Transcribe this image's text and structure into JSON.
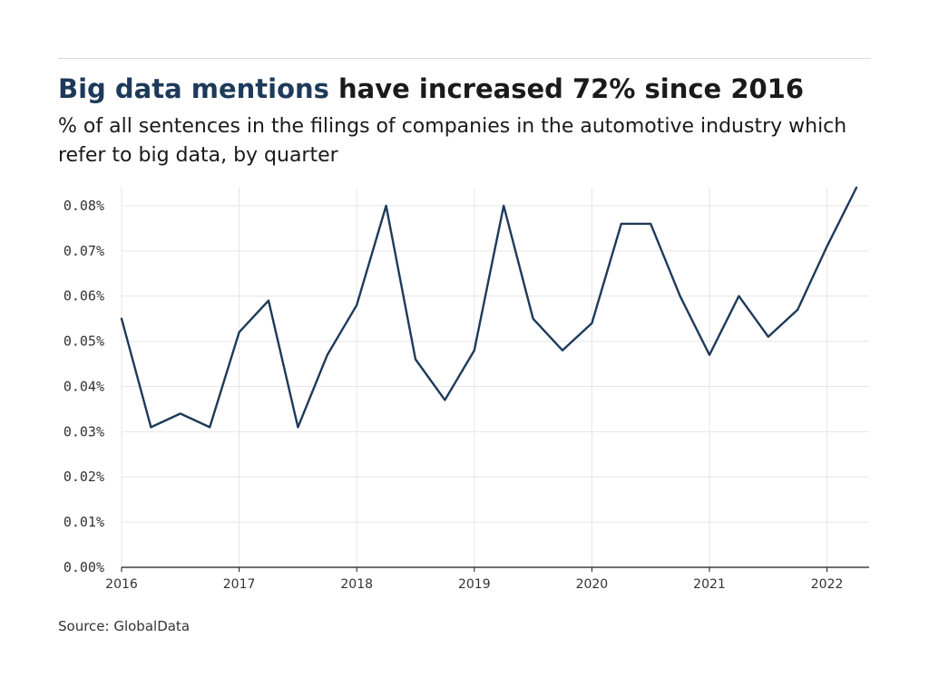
{
  "title": {
    "highlight": "Big data mentions",
    "rest": " have increased 72% since 2016"
  },
  "subtitle": "% of all sentences in the filings of companies in the automotive industry which refer to big data, by quarter",
  "source": "Source: GlobalData",
  "colors": {
    "line": "#1e3a5a",
    "title_highlight": "#1e3a5a",
    "grid": "#e6e6e6",
    "axis": "#1a1a1a"
  },
  "chart_data": {
    "type": "line",
    "title": "Big data mentions have increased 72% since 2016",
    "subtitle": "% of all sentences in the filings of companies in the automotive industry which refer to big data, by quarter",
    "xlabel": "",
    "ylabel": "",
    "x": [
      "2016 Q1",
      "2016 Q2",
      "2016 Q3",
      "2016 Q4",
      "2017 Q1",
      "2017 Q2",
      "2017 Q3",
      "2017 Q4",
      "2018 Q1",
      "2018 Q2",
      "2018 Q3",
      "2018 Q4",
      "2019 Q1",
      "2019 Q2",
      "2019 Q3",
      "2019 Q4",
      "2020 Q1",
      "2020 Q2",
      "2020 Q3",
      "2020 Q4",
      "2021 Q1",
      "2021 Q2",
      "2021 Q3",
      "2021 Q4",
      "2022 Q1",
      "2022 Q2"
    ],
    "series": [
      {
        "values": [
          0.055,
          0.031,
          0.034,
          0.031,
          0.052,
          0.059,
          0.031,
          0.047,
          0.058,
          0.08,
          0.046,
          0.037,
          0.048,
          0.08,
          0.055,
          0.048,
          0.054,
          0.076,
          0.076,
          0.06,
          0.047,
          0.06,
          0.051,
          0.057,
          0.071,
          0.084
        ]
      }
    ],
    "x_tick_labels": [
      "2016",
      "2017",
      "2018",
      "2019",
      "2020",
      "2021",
      "2022"
    ],
    "y_ticks": [
      0,
      0.01,
      0.02,
      0.03,
      0.04,
      0.05,
      0.06,
      0.07,
      0.08
    ],
    "y_tick_labels": [
      "0.00%",
      "0.01%",
      "0.02%",
      "0.03%",
      "0.04%",
      "0.05%",
      "0.06%",
      "0.07%",
      "0.08%"
    ],
    "ylim": [
      0,
      0.084
    ],
    "grid": true,
    "legend": "none"
  }
}
